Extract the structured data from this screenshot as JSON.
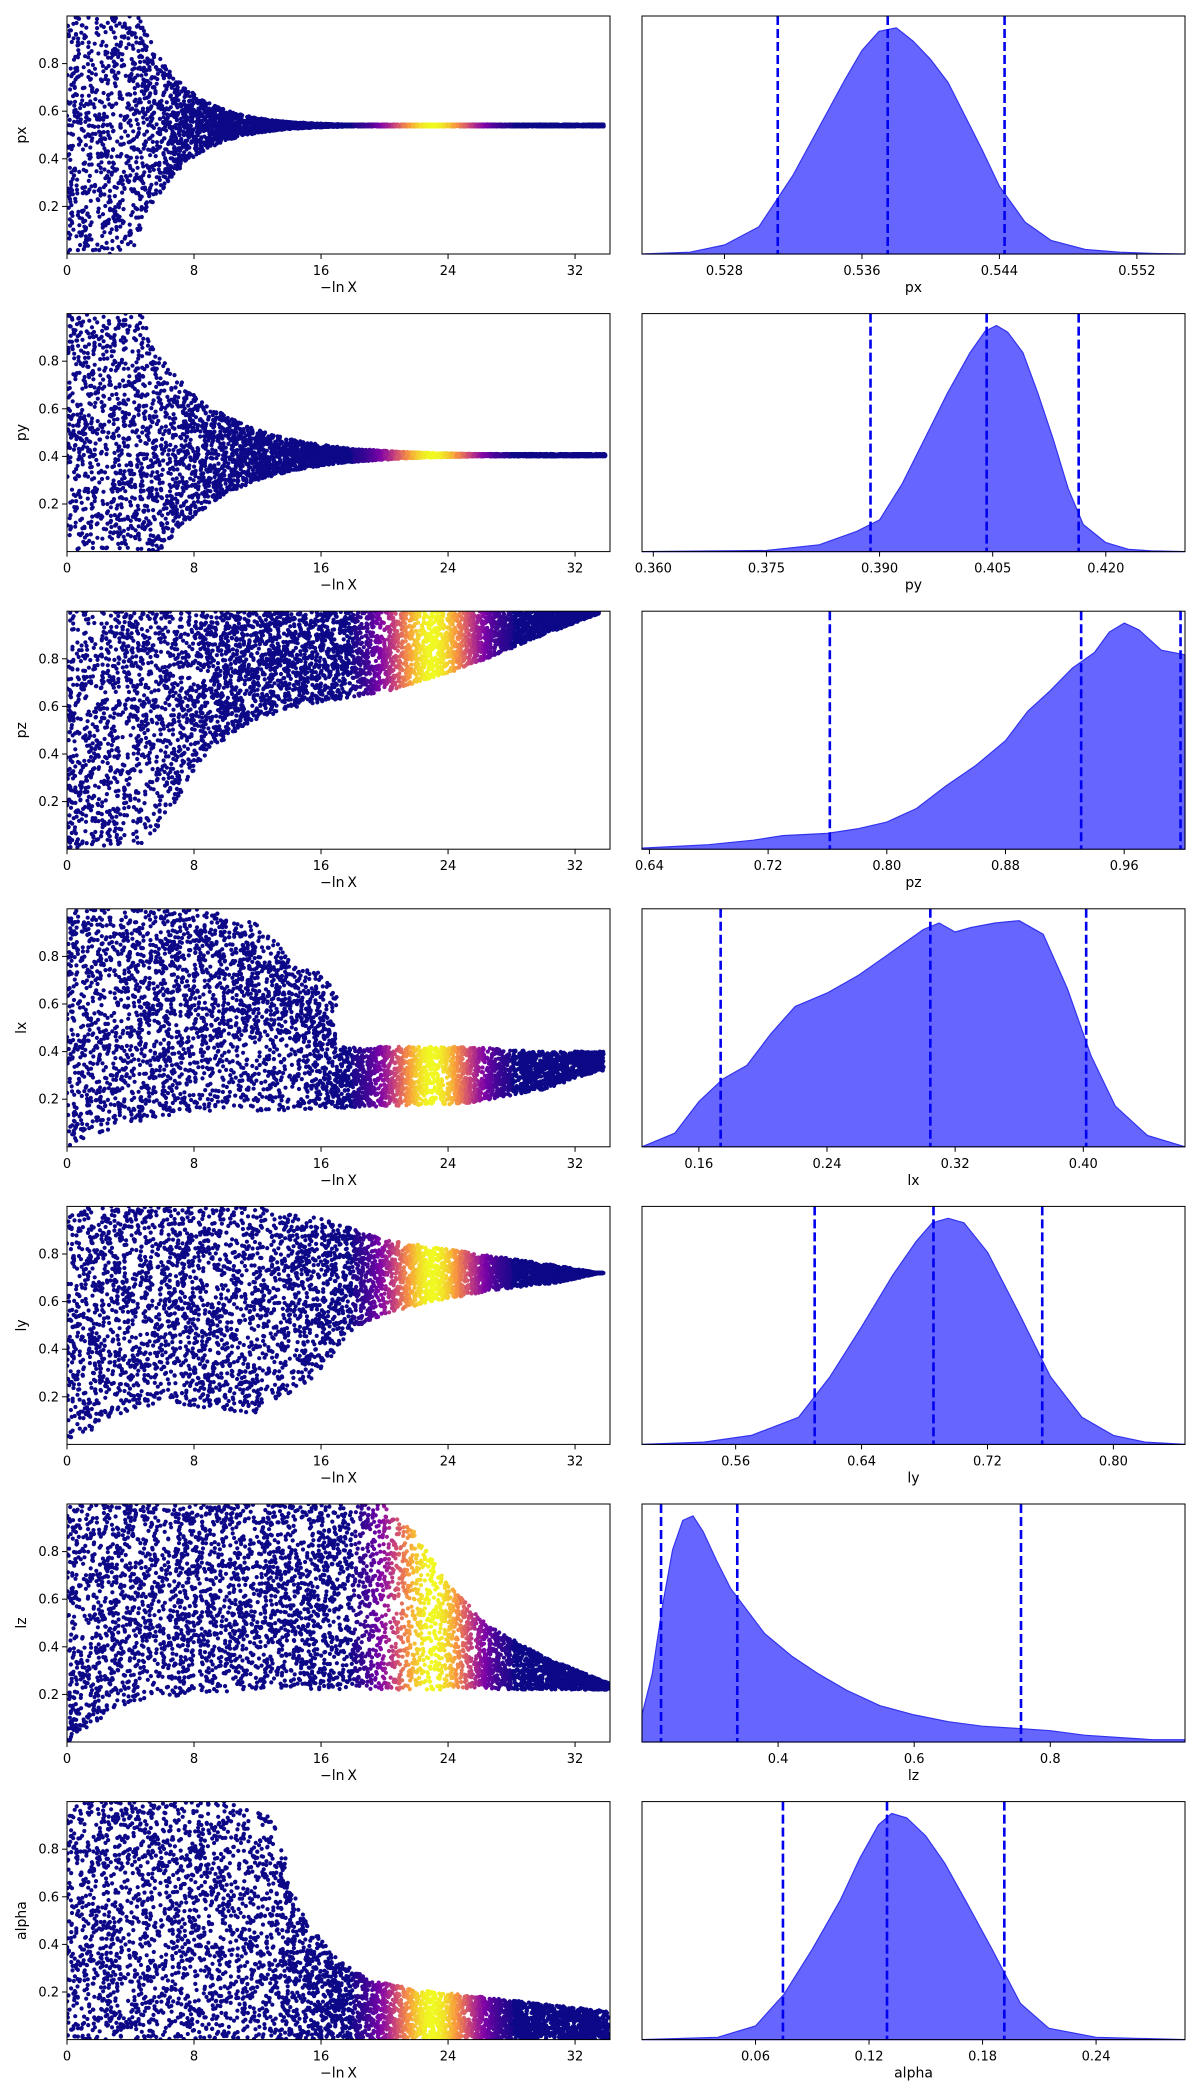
{
  "figure": {
    "background": "#ffffff"
  },
  "chart_data": [
    {
      "type": "scatter",
      "panel": "trace",
      "parameter": "px",
      "xlabel": "−ln X",
      "ylabel": "px",
      "xlim": [
        0,
        34.2
      ],
      "ylim": [
        0,
        1
      ],
      "xticks": [
        0,
        8,
        16,
        24,
        32
      ],
      "xtick_labels": [
        "0",
        "8",
        "16",
        "24",
        "32"
      ],
      "yticks": [
        0.2,
        0.4,
        0.6,
        0.8
      ],
      "ytick_labels": [
        "0.2",
        "0.4",
        "0.6",
        "0.8"
      ],
      "colormap": "plasma",
      "weight_peak_x": 23,
      "point_color": "#0d0887",
      "trace": {
        "converge": 0.54,
        "spread_start": 0.47,
        "taper_start": 4.5,
        "taper_rate": 0.36,
        "spread_floor": 0.004,
        "end_x": 33.8
      }
    },
    {
      "type": "area",
      "panel": "posterior",
      "parameter": "px",
      "xlabel": "px",
      "xlim": [
        0.5232,
        0.5548
      ],
      "xticks": [
        0.528,
        0.536,
        0.544,
        0.552
      ],
      "xtick_labels": [
        "0.528",
        "0.536",
        "0.544",
        "0.552"
      ],
      "fill_color": "#6666ff",
      "line_color": "#3333ee",
      "peak_y": 0.95,
      "density_x": [
        0.5232,
        0.526,
        0.528,
        0.53,
        0.532,
        0.5335,
        0.535,
        0.536,
        0.537,
        0.538,
        0.539,
        0.54,
        0.541,
        0.542,
        0.543,
        0.544,
        0.5455,
        0.547,
        0.549,
        0.551,
        0.553,
        0.5548
      ],
      "density_y": [
        0.0,
        0.008,
        0.04,
        0.12,
        0.35,
        0.56,
        0.77,
        0.9,
        0.985,
        1.0,
        0.94,
        0.86,
        0.76,
        0.61,
        0.46,
        0.3,
        0.14,
        0.06,
        0.02,
        0.008,
        0.002,
        0.0
      ],
      "quantile_lines": [
        0.5311,
        0.5375,
        0.5443
      ],
      "line_style": "dashed",
      "quantile_color": "#0000ee"
    },
    {
      "type": "scatter",
      "panel": "trace",
      "parameter": "py",
      "xlabel": "−ln X",
      "ylabel": "py",
      "xlim": [
        0,
        34.2
      ],
      "ylim": [
        0,
        1
      ],
      "xticks": [
        0,
        8,
        16,
        24,
        32
      ],
      "xtick_labels": [
        "0",
        "8",
        "16",
        "24",
        "32"
      ],
      "yticks": [
        0.2,
        0.4,
        0.6,
        0.8
      ],
      "ytick_labels": [
        "0.2",
        "0.4",
        "0.6",
        "0.8"
      ],
      "colormap": "plasma",
      "weight_peak_x": 23,
      "point_color": "#0d0887",
      "trace": {
        "converge": 0.405,
        "spread_start": 0.5,
        "taper_start": 5.0,
        "taper_rate": 0.22,
        "spread_floor": 0.005,
        "end_x": 33.9
      }
    },
    {
      "type": "area",
      "panel": "posterior",
      "parameter": "py",
      "xlabel": "py",
      "xlim": [
        0.3585,
        0.4305
      ],
      "xticks": [
        0.36,
        0.375,
        0.39,
        0.405,
        0.42
      ],
      "xtick_labels": [
        "0.360",
        "0.375",
        "0.390",
        "0.405",
        "0.420"
      ],
      "fill_color": "#6666ff",
      "line_color": "#3333ee",
      "peak_y": 0.95,
      "density_x": [
        0.3585,
        0.375,
        0.382,
        0.387,
        0.39,
        0.393,
        0.396,
        0.399,
        0.402,
        0.404,
        0.4055,
        0.407,
        0.409,
        0.411,
        0.413,
        0.415,
        0.417,
        0.42,
        0.423,
        0.426,
        0.4305
      ],
      "density_y": [
        0.0,
        0.005,
        0.03,
        0.09,
        0.14,
        0.3,
        0.5,
        0.7,
        0.88,
        0.975,
        1.0,
        0.97,
        0.88,
        0.7,
        0.5,
        0.28,
        0.12,
        0.04,
        0.01,
        0.003,
        0.0
      ],
      "quantile_lines": [
        0.3888,
        0.4042,
        0.4164
      ],
      "line_style": "dashed",
      "quantile_color": "#0000ee"
    },
    {
      "type": "scatter",
      "panel": "trace",
      "parameter": "pz",
      "xlabel": "−ln X",
      "ylabel": "pz",
      "xlim": [
        0,
        34.2
      ],
      "ylim": [
        0,
        1
      ],
      "xticks": [
        0,
        8,
        16,
        24,
        32
      ],
      "xtick_labels": [
        "0",
        "8",
        "16",
        "24",
        "32"
      ],
      "yticks": [
        0.2,
        0.4,
        0.6,
        0.8
      ],
      "ytick_labels": [
        "0.2",
        "0.4",
        "0.6",
        "0.8"
      ],
      "colormap": "plasma",
      "weight_peak_x": 23,
      "point_color": "#0d0887",
      "trace": {
        "lower_x": [
          0,
          5,
          7,
          9,
          12,
          16,
          20,
          25,
          30,
          33.5
        ],
        "lower_y": [
          0,
          0.02,
          0.22,
          0.42,
          0.55,
          0.62,
          0.66,
          0.76,
          0.9,
          0.99
        ],
        "upper": 1.0,
        "end_x": 33.5
      }
    },
    {
      "type": "area",
      "panel": "posterior",
      "parameter": "pz",
      "xlabel": "pz",
      "xlim": [
        0.635,
        1.001
      ],
      "xticks": [
        0.64,
        0.72,
        0.8,
        0.88,
        0.96
      ],
      "xtick_labels": [
        "0.64",
        "0.72",
        "0.80",
        "0.88",
        "0.96"
      ],
      "fill_color": "#6666ff",
      "line_color": "#3333ee",
      "peak_y": 0.95,
      "density_x": [
        0.635,
        0.68,
        0.71,
        0.73,
        0.76,
        0.78,
        0.8,
        0.82,
        0.84,
        0.86,
        0.88,
        0.895,
        0.91,
        0.925,
        0.94,
        0.95,
        0.96,
        0.97,
        0.985,
        1.001
      ],
      "density_y": [
        0.005,
        0.02,
        0.04,
        0.06,
        0.07,
        0.09,
        0.12,
        0.18,
        0.28,
        0.37,
        0.48,
        0.61,
        0.7,
        0.8,
        0.87,
        0.96,
        1.0,
        0.97,
        0.88,
        0.86
      ],
      "quantile_lines": [
        0.7616,
        0.931,
        0.998
      ],
      "line_style": "dashed",
      "quantile_color": "#0000ee"
    },
    {
      "type": "scatter",
      "panel": "trace",
      "parameter": "lx",
      "xlabel": "−ln X",
      "ylabel": "lx",
      "xlim": [
        0,
        34.2
      ],
      "ylim": [
        0,
        1
      ],
      "xticks": [
        0,
        8,
        16,
        24,
        32
      ],
      "xtick_labels": [
        "0",
        "8",
        "16",
        "24",
        "32"
      ],
      "yticks": [
        0.2,
        0.4,
        0.6,
        0.8
      ],
      "ytick_labels": [
        "0.2",
        "0.4",
        "0.6",
        "0.8"
      ],
      "colormap": "plasma",
      "weight_peak_x": 23,
      "point_color": "#0d0887",
      "trace": {
        "lower_x": [
          0,
          3,
          6,
          9,
          12,
          16,
          20,
          25,
          30,
          33.5
        ],
        "lower_y": [
          0,
          0.08,
          0.13,
          0.15,
          0.15,
          0.16,
          0.17,
          0.18,
          0.24,
          0.32
        ],
        "upper_x": [
          0,
          8,
          12,
          15,
          17,
          20,
          25,
          30,
          33.5
        ],
        "upper_y": [
          1,
          1,
          0.95,
          0.72,
          0.42,
          0.42,
          0.42,
          0.4,
          0.4
        ],
        "plume": {
          "x0": 8,
          "x1": 17,
          "y0": 0.45,
          "y1": 0.95
        },
        "end_x": 33.8
      }
    },
    {
      "type": "area",
      "panel": "posterior",
      "parameter": "lx",
      "xlabel": "lx",
      "xlim": [
        0.1245,
        0.4635
      ],
      "xticks": [
        0.16,
        0.24,
        0.32,
        0.4
      ],
      "xtick_labels": [
        "0.16",
        "0.24",
        "0.32",
        "0.40"
      ],
      "fill_color": "#6666ff",
      "line_color": "#3333ee",
      "peak_y": 0.95,
      "density_x": [
        0.1245,
        0.145,
        0.16,
        0.175,
        0.19,
        0.205,
        0.22,
        0.24,
        0.26,
        0.28,
        0.3,
        0.31,
        0.32,
        0.33,
        0.345,
        0.36,
        0.375,
        0.39,
        0.405,
        0.42,
        0.44,
        0.4635
      ],
      "density_y": [
        0.0,
        0.06,
        0.2,
        0.3,
        0.36,
        0.5,
        0.62,
        0.68,
        0.76,
        0.86,
        0.96,
        0.99,
        0.95,
        0.97,
        0.99,
        1.0,
        0.94,
        0.7,
        0.4,
        0.18,
        0.05,
        0.0
      ],
      "quantile_lines": [
        0.1736,
        0.3045,
        0.4018
      ],
      "line_style": "dashed",
      "quantile_color": "#0000ee"
    },
    {
      "type": "scatter",
      "panel": "trace",
      "parameter": "ly",
      "xlabel": "−ln X",
      "ylabel": "ly",
      "xlim": [
        0,
        34.2
      ],
      "ylim": [
        0,
        1
      ],
      "xticks": [
        0,
        8,
        16,
        24,
        32
      ],
      "xtick_labels": [
        "0",
        "8",
        "16",
        "24",
        "32"
      ],
      "yticks": [
        0.2,
        0.4,
        0.6,
        0.8
      ],
      "ytick_labels": [
        "0.2",
        "0.4",
        "0.6",
        "0.8"
      ],
      "colormap": "plasma",
      "weight_peak_x": 23,
      "point_color": "#0d0887",
      "trace": {
        "lower_x": [
          0,
          3,
          6,
          9,
          12,
          16,
          18,
          20,
          23,
          27,
          31,
          33.5
        ],
        "lower_y": [
          0,
          0.12,
          0.18,
          0.15,
          0.13,
          0.3,
          0.48,
          0.55,
          0.6,
          0.65,
          0.68,
          0.72
        ],
        "upper_x": [
          0,
          12,
          16,
          20,
          24,
          28,
          31,
          33.5
        ],
        "upper_y": [
          1,
          1,
          0.95,
          0.86,
          0.82,
          0.78,
          0.75,
          0.72
        ],
        "end_x": 33.8
      }
    },
    {
      "type": "area",
      "panel": "posterior",
      "parameter": "ly",
      "xlabel": "ly",
      "xlim": [
        0.5005,
        0.8455
      ],
      "xticks": [
        0.56,
        0.64,
        0.72,
        0.8
      ],
      "xtick_labels": [
        "0.56",
        "0.64",
        "0.72",
        "0.80"
      ],
      "fill_color": "#6666ff",
      "line_color": "#3333ee",
      "peak_y": 0.95,
      "density_x": [
        0.5005,
        0.54,
        0.57,
        0.6,
        0.62,
        0.64,
        0.66,
        0.675,
        0.685,
        0.695,
        0.705,
        0.72,
        0.74,
        0.76,
        0.78,
        0.8,
        0.82,
        0.8455
      ],
      "density_y": [
        0.0,
        0.01,
        0.04,
        0.12,
        0.3,
        0.52,
        0.75,
        0.9,
        0.98,
        1.0,
        0.98,
        0.85,
        0.58,
        0.3,
        0.12,
        0.04,
        0.01,
        0.0
      ],
      "quantile_lines": [
        0.6102,
        0.6857,
        0.7548
      ],
      "line_style": "dashed",
      "quantile_color": "#0000ee"
    },
    {
      "type": "scatter",
      "panel": "trace",
      "parameter": "lz",
      "xlabel": "−ln X",
      "ylabel": "lz",
      "xlim": [
        0,
        34.2
      ],
      "ylim": [
        0,
        1
      ],
      "xticks": [
        0,
        8,
        16,
        24,
        32
      ],
      "xtick_labels": [
        "0",
        "8",
        "16",
        "24",
        "32"
      ],
      "yticks": [
        0.2,
        0.4,
        0.6,
        0.8
      ],
      "ytick_labels": [
        "0.2",
        "0.4",
        "0.6",
        "0.8"
      ],
      "colormap": "plasma",
      "weight_peak_x": 23,
      "point_color": "#0d0887",
      "trace": {
        "lower_x": [
          0,
          3,
          6,
          10,
          15,
          20,
          25,
          30,
          34
        ],
        "lower_y": [
          0,
          0.14,
          0.19,
          0.21,
          0.22,
          0.22,
          0.22,
          0.22,
          0.22
        ],
        "upper_x": [
          0,
          18,
          20,
          22,
          24,
          27,
          30,
          34
        ],
        "upper_y": [
          1,
          1,
          1,
          0.88,
          0.66,
          0.47,
          0.36,
          0.25
        ],
        "end_x": 34.1
      }
    },
    {
      "type": "area",
      "panel": "posterior",
      "parameter": "lz",
      "xlabel": "lz",
      "xlim": [
        0.2,
        0.998
      ],
      "xticks": [
        0.4,
        0.6,
        0.8
      ],
      "xtick_labels": [
        "0.4",
        "0.6",
        "0.8"
      ],
      "fill_color": "#6666ff",
      "line_color": "#3333ee",
      "peak_y": 0.95,
      "density_x": [
        0.2,
        0.215,
        0.23,
        0.245,
        0.26,
        0.275,
        0.29,
        0.31,
        0.33,
        0.35,
        0.38,
        0.42,
        0.46,
        0.5,
        0.55,
        0.6,
        0.65,
        0.7,
        0.75,
        0.8,
        0.85,
        0.9,
        0.95,
        0.998
      ],
      "density_y": [
        0.12,
        0.3,
        0.6,
        0.85,
        0.98,
        1.0,
        0.93,
        0.8,
        0.68,
        0.6,
        0.48,
        0.38,
        0.3,
        0.23,
        0.16,
        0.12,
        0.09,
        0.07,
        0.06,
        0.05,
        0.03,
        0.02,
        0.01,
        0.01
      ],
      "quantile_lines": [
        0.228,
        0.34,
        0.757
      ],
      "line_style": "dashed",
      "quantile_color": "#0000ee"
    },
    {
      "type": "scatter",
      "panel": "trace",
      "parameter": "alpha",
      "xlabel": "−ln X",
      "ylabel": "alpha",
      "xlim": [
        0,
        34.2
      ],
      "ylim": [
        0,
        1
      ],
      "xticks": [
        0,
        8,
        16,
        24,
        32
      ],
      "xtick_labels": [
        "0",
        "8",
        "16",
        "24",
        "32"
      ],
      "yticks": [
        0.2,
        0.4,
        0.6,
        0.8
      ],
      "ytick_labels": [
        "0.2",
        "0.4",
        "0.6",
        "0.8"
      ],
      "colormap": "plasma",
      "weight_peak_x": 23,
      "point_color": "#0d0887",
      "trace": {
        "lower": 0.0,
        "upper_x": [
          0,
          10,
          13,
          14,
          15,
          17,
          19,
          22,
          26,
          30,
          34
        ],
        "upper_y": [
          1,
          1,
          0.93,
          0.72,
          0.5,
          0.34,
          0.25,
          0.21,
          0.18,
          0.15,
          0.12
        ],
        "end_x": 34.1
      }
    },
    {
      "type": "area",
      "panel": "posterior",
      "parameter": "alpha",
      "xlabel": "alpha",
      "xlim": [
        0.0,
        0.287
      ],
      "xticks": [
        0.06,
        0.12,
        0.18,
        0.24
      ],
      "xtick_labels": [
        "0.06",
        "0.12",
        "0.18",
        "0.24"
      ],
      "fill_color": "#6666ff",
      "line_color": "#3333ee",
      "peak_y": 0.95,
      "density_x": [
        0.0,
        0.04,
        0.06,
        0.075,
        0.09,
        0.105,
        0.115,
        0.125,
        0.132,
        0.14,
        0.15,
        0.16,
        0.172,
        0.185,
        0.2,
        0.215,
        0.24,
        0.287
      ],
      "density_y": [
        0.0,
        0.01,
        0.06,
        0.2,
        0.4,
        0.62,
        0.8,
        0.95,
        1.0,
        0.98,
        0.9,
        0.78,
        0.6,
        0.4,
        0.16,
        0.05,
        0.01,
        0.0
      ],
      "quantile_lines": [
        0.0745,
        0.1295,
        0.1915
      ],
      "line_style": "dashed",
      "quantile_color": "#0000ee"
    }
  ]
}
